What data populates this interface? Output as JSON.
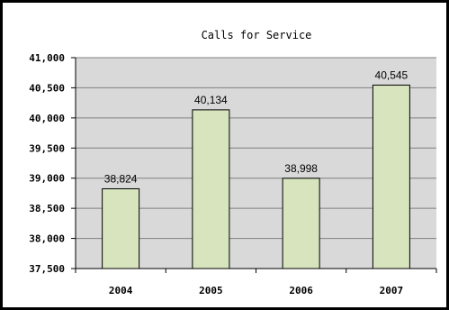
{
  "chart_data": {
    "type": "bar",
    "title": "Calls for Service",
    "categories": [
      "2004",
      "2005",
      "2006",
      "2007"
    ],
    "values": [
      38824,
      40134,
      38998,
      40545
    ],
    "data_labels": [
      "38,824",
      "40,134",
      "38,998",
      "40,545"
    ],
    "ylim": [
      37500,
      41000
    ],
    "yticks": [
      37500,
      38000,
      38500,
      39000,
      39500,
      40000,
      40500,
      41000
    ],
    "ytick_labels": [
      "37,500",
      "38,000",
      "38,500",
      "39,000",
      "39,500",
      "40,000",
      "40,500",
      "41,000"
    ],
    "xlabel": "",
    "ylabel": "",
    "grid": true,
    "legend": "none",
    "colors": {
      "bar_fill": "#d7e4bd",
      "bar_stroke": "#000000",
      "plot_background": "#d9d9d9",
      "gridline": "#808080"
    }
  }
}
